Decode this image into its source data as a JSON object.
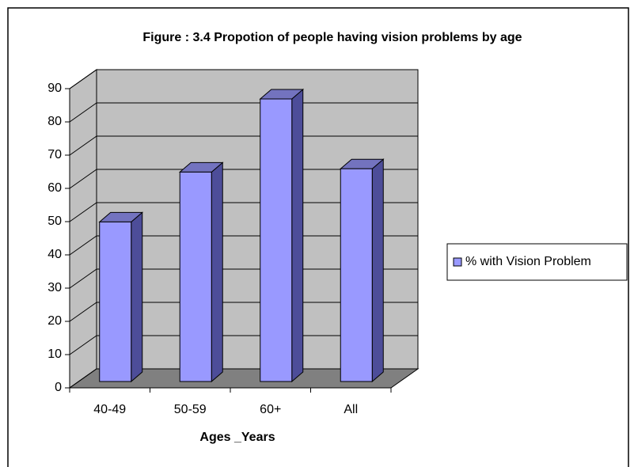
{
  "chart_data": {
    "type": "bar",
    "title": "Figure : 3.4 Propotion of people having vision problems by age",
    "x_label": "Ages _Years",
    "categories": [
      "40-49",
      "50-59",
      "60+",
      "All"
    ],
    "series": [
      {
        "name": "% with Vision Problem",
        "color": "#9999ff",
        "values": [
          48,
          63,
          85,
          64
        ]
      }
    ],
    "ylim": [
      0,
      90
    ],
    "yticks": [
      0,
      10,
      20,
      30,
      40,
      50,
      60,
      70,
      80,
      90
    ],
    "grid": true,
    "legend": "right"
  }
}
